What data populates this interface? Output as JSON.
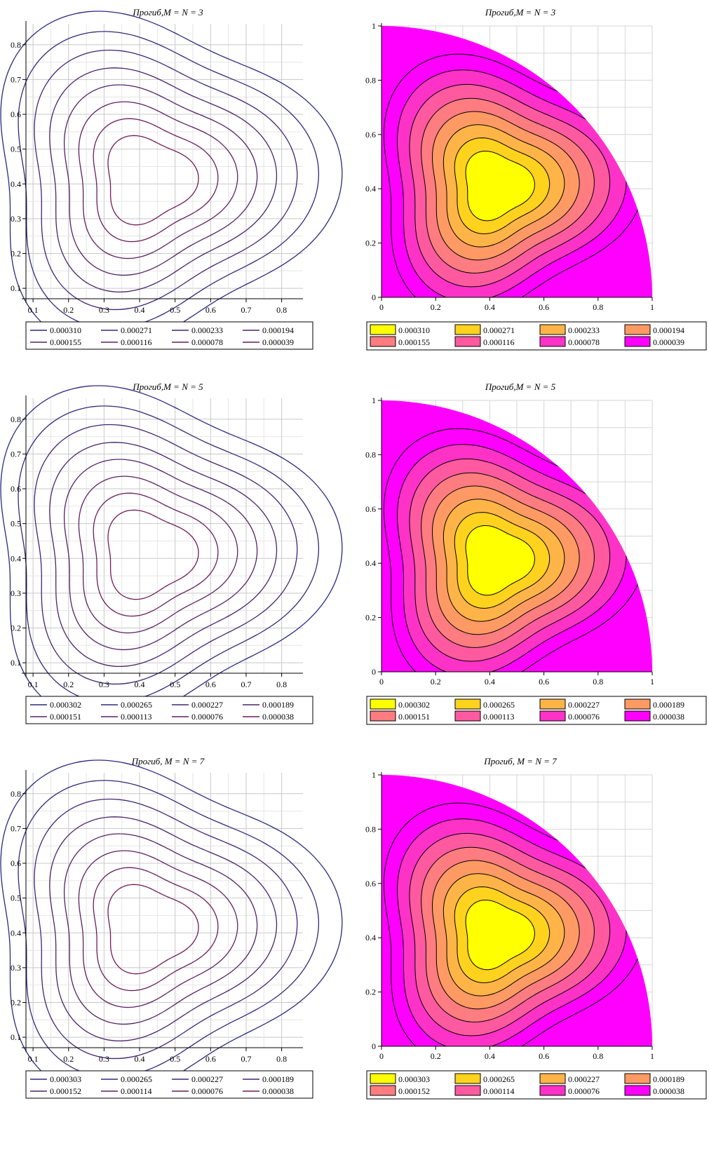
{
  "chart_data": [
    {
      "type": "contour",
      "title": "Прогиб,M = N = 3",
      "xlabel": "",
      "ylabel": "",
      "xticks": [
        "0.1",
        "0.2",
        "0.3",
        "0.4",
        "0.5",
        "0.6",
        "0.7",
        "0.8"
      ],
      "yticks": [
        "0.1",
        "0.2",
        "0.3",
        "0.4",
        "0.5",
        "0.6",
        "0.7",
        "0.8"
      ],
      "xlim": [
        0.08,
        0.86
      ],
      "ylim": [
        0.07,
        0.86
      ],
      "grid": true,
      "legend_position": "bottom",
      "levels": [
        "0.000310",
        "0.000271",
        "0.000233",
        "0.000194",
        "0.000155",
        "0.000116",
        "0.000078",
        "0.000039"
      ],
      "line_colors": [
        "#2b2a80",
        "#35287a",
        "#3f2674",
        "#49246e",
        "#532268",
        "#5d2062",
        "#671e5c",
        "#711c56"
      ]
    },
    {
      "type": "filled-contour",
      "title": "Прогиб,M = N = 3",
      "xlabel": "",
      "ylabel": "",
      "xticks": [
        "0",
        "0.2",
        "0.4",
        "0.6",
        "0.8",
        "1"
      ],
      "yticks": [
        "0",
        "0.2",
        "0.4",
        "0.6",
        "0.8",
        "1"
      ],
      "xlim": [
        0,
        1
      ],
      "ylim": [
        0,
        1
      ],
      "grid": true,
      "legend_position": "bottom",
      "levels": [
        "0.000310",
        "0.000271",
        "0.000233",
        "0.000194",
        "0.000155",
        "0.000116",
        "0.000078",
        "0.000039"
      ],
      "fill_colors": [
        "#ffff00",
        "#ffd21e",
        "#ffb448",
        "#ff9a64",
        "#ff7c80",
        "#ff5aa0",
        "#ff32c8",
        "#ff00ff"
      ]
    },
    {
      "type": "contour",
      "title": "Прогиб,M = N = 5",
      "xlabel": "",
      "ylabel": "",
      "xticks": [
        "0.1",
        "0.2",
        "0.3",
        "0.4",
        "0.5",
        "0.6",
        "0.7",
        "0.8"
      ],
      "yticks": [
        "0.1",
        "0.2",
        "0.3",
        "0.4",
        "0.5",
        "0.6",
        "0.7",
        "0.8"
      ],
      "xlim": [
        0.08,
        0.86
      ],
      "ylim": [
        0.07,
        0.86
      ],
      "grid": true,
      "legend_position": "bottom",
      "levels": [
        "0.000302",
        "0.000265",
        "0.000227",
        "0.000189",
        "0.000151",
        "0.000113",
        "0.000076",
        "0.000038"
      ],
      "line_colors": [
        "#2b2a80",
        "#35287a",
        "#3f2674",
        "#49246e",
        "#532268",
        "#5d2062",
        "#671e5c",
        "#711c56"
      ]
    },
    {
      "type": "filled-contour",
      "title": "Прогиб,M = N = 5",
      "xlabel": "",
      "ylabel": "",
      "xticks": [
        "0",
        "0.2",
        "0.4",
        "0.6",
        "0.8",
        "1"
      ],
      "yticks": [
        "0",
        "0.2",
        "0.4",
        "0.6",
        "0.8",
        "1"
      ],
      "xlim": [
        0,
        1
      ],
      "ylim": [
        0,
        1
      ],
      "grid": true,
      "legend_position": "bottom",
      "levels": [
        "0.000302",
        "0.000265",
        "0.000227",
        "0.000189",
        "0.000151",
        "0.000113",
        "0.000076",
        "0.000038"
      ],
      "fill_colors": [
        "#ffff00",
        "#ffd21e",
        "#ffb448",
        "#ff9a64",
        "#ff7c80",
        "#ff5aa0",
        "#ff32c8",
        "#ff00ff"
      ]
    },
    {
      "type": "contour",
      "title": "Прогиб, M = N = 7",
      "xlabel": "",
      "ylabel": "",
      "xticks": [
        "0.1",
        "0.2",
        "0.3",
        "0.4",
        "0.5",
        "0.6",
        "0.7",
        "0.8"
      ],
      "yticks": [
        "0.1",
        "0.2",
        "0.3",
        "0.4",
        "0.5",
        "0.6",
        "0.7",
        "0.8"
      ],
      "xlim": [
        0.08,
        0.86
      ],
      "ylim": [
        0.07,
        0.86
      ],
      "grid": true,
      "legend_position": "bottom",
      "levels": [
        "0.000303",
        "0.000265",
        "0.000227",
        "0.000189",
        "0.000152",
        "0.000114",
        "0.000076",
        "0.000038"
      ],
      "line_colors": [
        "#2b2a80",
        "#35287a",
        "#3f2674",
        "#49246e",
        "#532268",
        "#5d2062",
        "#671e5c",
        "#711c56"
      ]
    },
    {
      "type": "filled-contour",
      "title": "Прогиб, M = N = 7",
      "xlabel": "",
      "ylabel": "",
      "xticks": [
        "0",
        "0.2",
        "0.4",
        "0.6",
        "0.8",
        "1"
      ],
      "yticks": [
        "0",
        "0.2",
        "0.4",
        "0.6",
        "0.8",
        "1"
      ],
      "xlim": [
        0,
        1
      ],
      "ylim": [
        0,
        1
      ],
      "grid": true,
      "legend_position": "bottom",
      "levels": [
        "0.000303",
        "0.000265",
        "0.000227",
        "0.000189",
        "0.000152",
        "0.000114",
        "0.000076",
        "0.000038"
      ],
      "fill_colors": [
        "#ffff00",
        "#ffd21e",
        "#ffb448",
        "#ff9a64",
        "#ff7c80",
        "#ff5aa0",
        "#ff32c8",
        "#ff00ff"
      ]
    }
  ]
}
